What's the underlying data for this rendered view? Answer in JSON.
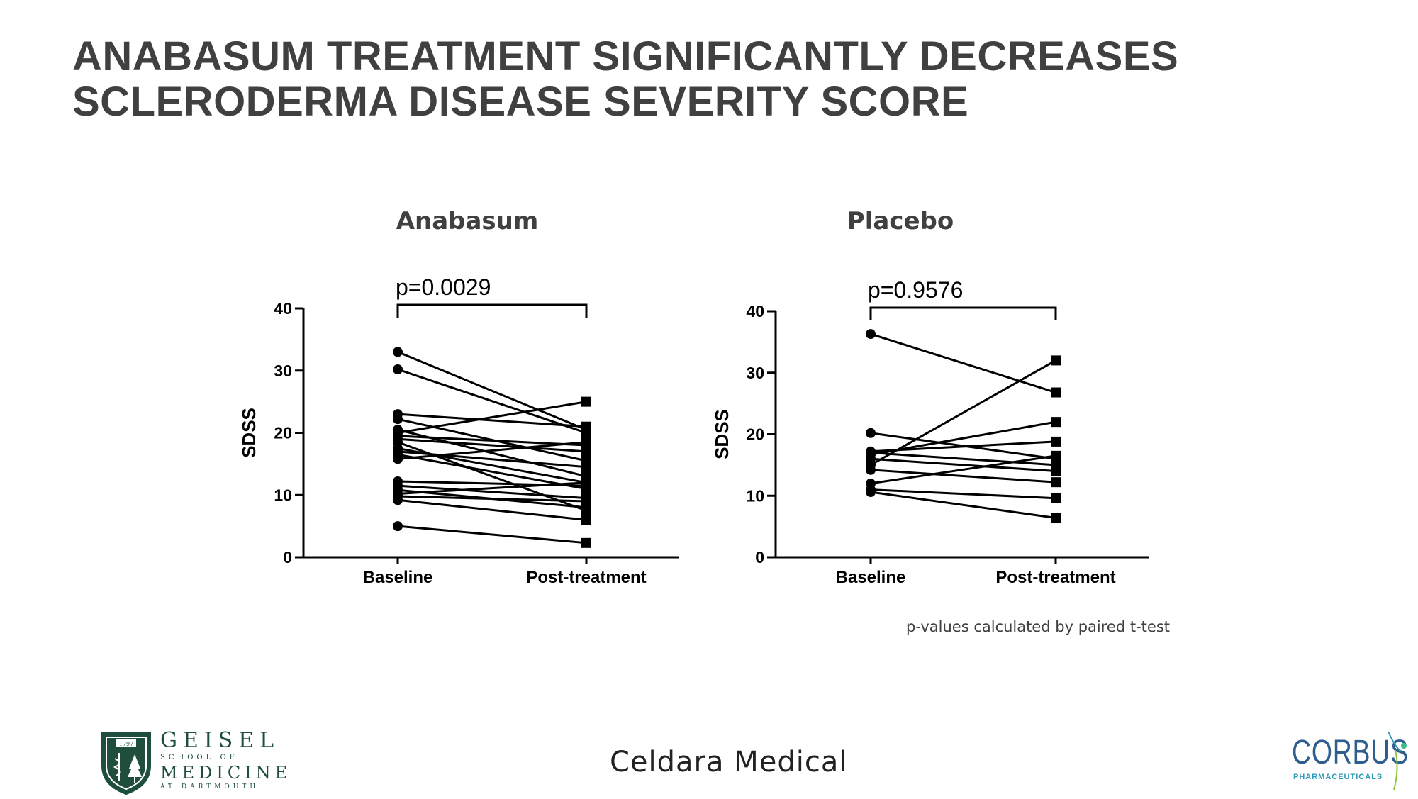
{
  "slide": {
    "title_line1": "ANABASUM TREATMENT SIGNIFICANTLY DECREASES",
    "title_line2": "SCLERODERMA DISEASE SEVERITY SCORE",
    "footnote": "p-values calculated by paired t-test",
    "center_brand": "Celdara Medical",
    "left_logo": {
      "line1": "GEISEL",
      "line2": "SCHOOL OF",
      "line3": "MEDICINE",
      "line4": "AT DARTMOUTH",
      "seal_year": "1797",
      "color": "#1f4e3d"
    },
    "right_logo": {
      "name": "CORBUS",
      "sub": "PHARMACEUTICALS",
      "color": "#2e5d8e"
    }
  },
  "chart_data": [
    {
      "type": "line",
      "title": "Anabasum",
      "ylabel": "SDSS",
      "xlabel": "",
      "categories": [
        "Baseline",
        "Post-treatment"
      ],
      "ylim": [
        0,
        40
      ],
      "yticks": [
        0,
        10,
        20,
        30,
        40
      ],
      "annotation": "p=0.0029",
      "grid": false,
      "pairs": [
        [
          33,
          20.5
        ],
        [
          30.2,
          20
        ],
        [
          23,
          21
        ],
        [
          22.2,
          15.5
        ],
        [
          20.5,
          13
        ],
        [
          20,
          25
        ],
        [
          19.5,
          18
        ],
        [
          19,
          17
        ],
        [
          18.5,
          7.5
        ],
        [
          17.5,
          12
        ],
        [
          17,
          14.5
        ],
        [
          16.5,
          11
        ],
        [
          15.8,
          18.5
        ],
        [
          12.2,
          11.5
        ],
        [
          11.5,
          9.5
        ],
        [
          10.8,
          8
        ],
        [
          10.2,
          12
        ],
        [
          9.8,
          9
        ],
        [
          9.2,
          6
        ],
        [
          5,
          2.3
        ]
      ]
    },
    {
      "type": "line",
      "title": "Placebo",
      "ylabel": "SDSS",
      "xlabel": "",
      "categories": [
        "Baseline",
        "Post-treatment"
      ],
      "ylim": [
        0,
        40
      ],
      "yticks": [
        0,
        10,
        20,
        30,
        40
      ],
      "annotation": "p=0.9576",
      "grid": false,
      "pairs": [
        [
          36.3,
          26.8
        ],
        [
          20.2,
          16
        ],
        [
          17.2,
          18.8
        ],
        [
          17,
          15
        ],
        [
          16.7,
          22
        ],
        [
          16,
          14
        ],
        [
          15,
          32
        ],
        [
          14.2,
          12.2
        ],
        [
          12,
          16.5
        ],
        [
          11,
          9.6
        ],
        [
          10.6,
          6.4
        ]
      ]
    }
  ]
}
